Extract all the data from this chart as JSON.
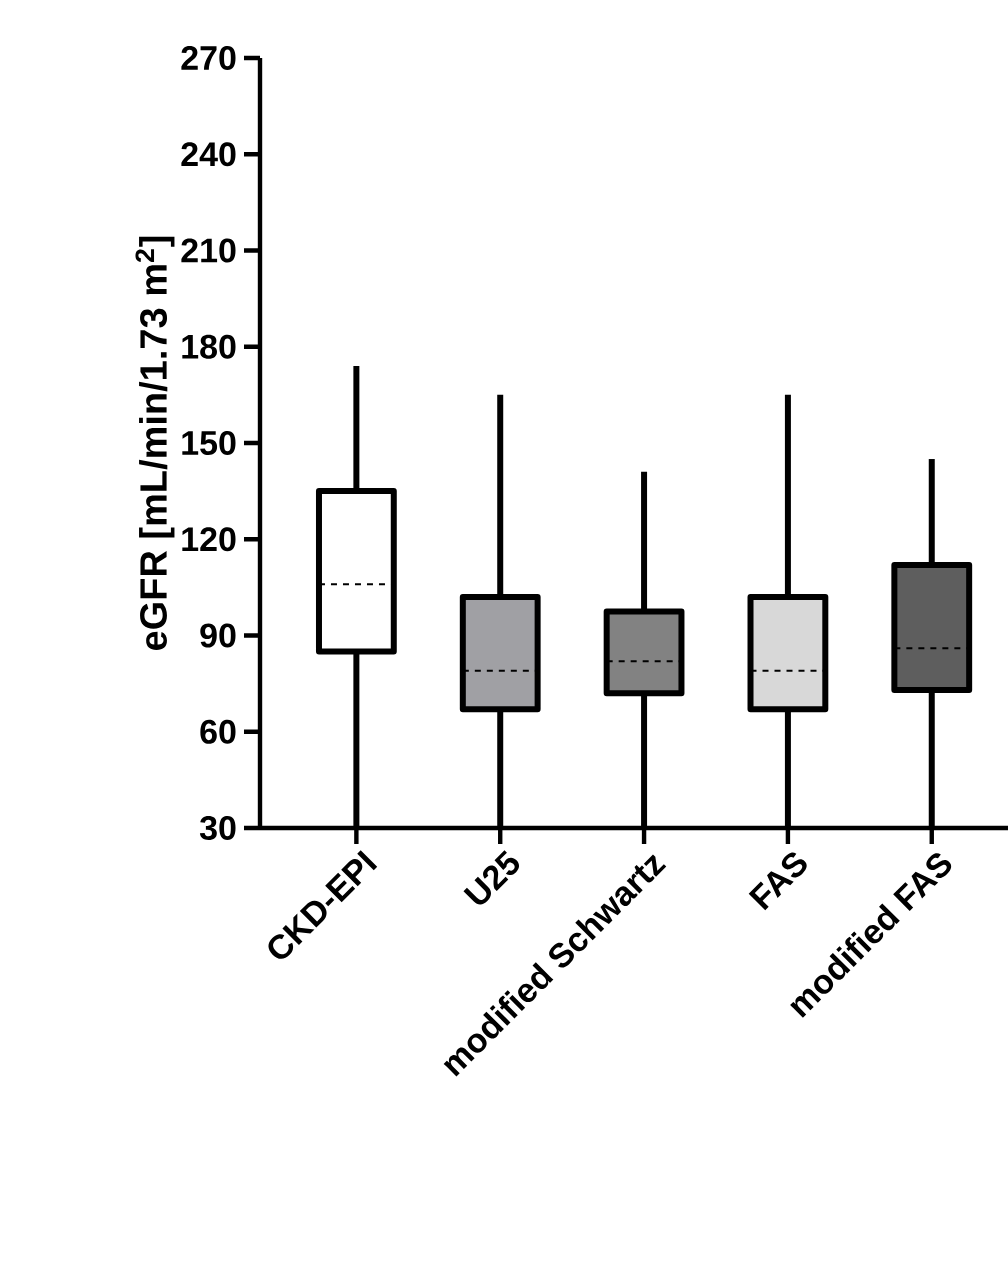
{
  "chart_data": {
    "type": "box",
    "ylabel": "eGFR [mL/min/1.73 m$^{2}$]",
    "categories": [
      "CKD-EPI",
      "U25",
      "modified Schwartz",
      "FAS",
      "modified FAS"
    ],
    "colors": [
      "#ffffff",
      "#a0a0a4",
      "#828282",
      "#d8d8d8",
      "#5e5e5e"
    ],
    "boxes": [
      {
        "low": 30,
        "q1": 85,
        "median": 106,
        "q3": 135,
        "high": 174
      },
      {
        "low": 30,
        "q1": 67,
        "median": 79,
        "q3": 102,
        "high": 165
      },
      {
        "low": 30,
        "q1": 72,
        "median": 82,
        "q3": 97.5,
        "high": 141
      },
      {
        "low": 30,
        "q1": 67,
        "median": 79,
        "q3": 102,
        "high": 165
      },
      {
        "low": 30,
        "q1": 73,
        "median": 86,
        "q3": 112,
        "high": 145
      }
    ],
    "ylim": [
      30,
      270
    ],
    "yticks": [
      30,
      60,
      90,
      120,
      150,
      180,
      210,
      240,
      270
    ]
  }
}
